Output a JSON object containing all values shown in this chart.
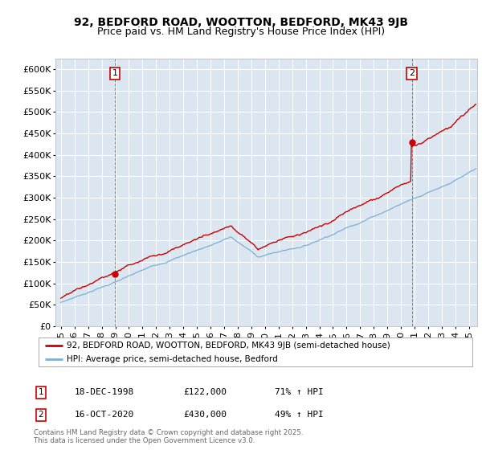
{
  "title": "92, BEDFORD ROAD, WOOTTON, BEDFORD, MK43 9JB",
  "subtitle": "Price paid vs. HM Land Registry's House Price Index (HPI)",
  "ytick_values": [
    0,
    50000,
    100000,
    150000,
    200000,
    250000,
    300000,
    350000,
    400000,
    450000,
    500000,
    550000,
    600000
  ],
  "ylim": [
    0,
    625000
  ],
  "plot_bg_color": "#dce6f1",
  "line1_color": "#cc0000",
  "line2_color": "#7bafd4",
  "sale1_date_num": 1998.96,
  "sale1_price": 122000,
  "sale2_date_num": 2020.79,
  "sale2_price": 430000,
  "sale1_label": "1",
  "sale2_label": "2",
  "legend_line1": "92, BEDFORD ROAD, WOOTTON, BEDFORD, MK43 9JB (semi-detached house)",
  "legend_line2": "HPI: Average price, semi-detached house, Bedford",
  "table_entries": [
    {
      "num": "1",
      "date": "18-DEC-1998",
      "price": "£122,000",
      "change": "71% ↑ HPI"
    },
    {
      "num": "2",
      "date": "16-OCT-2020",
      "price": "£430,000",
      "change": "49% ↑ HPI"
    }
  ],
  "footer": "Contains HM Land Registry data © Crown copyright and database right 2025.\nThis data is licensed under the Open Government Licence v3.0.",
  "title_fontsize": 10,
  "subtitle_fontsize": 9
}
